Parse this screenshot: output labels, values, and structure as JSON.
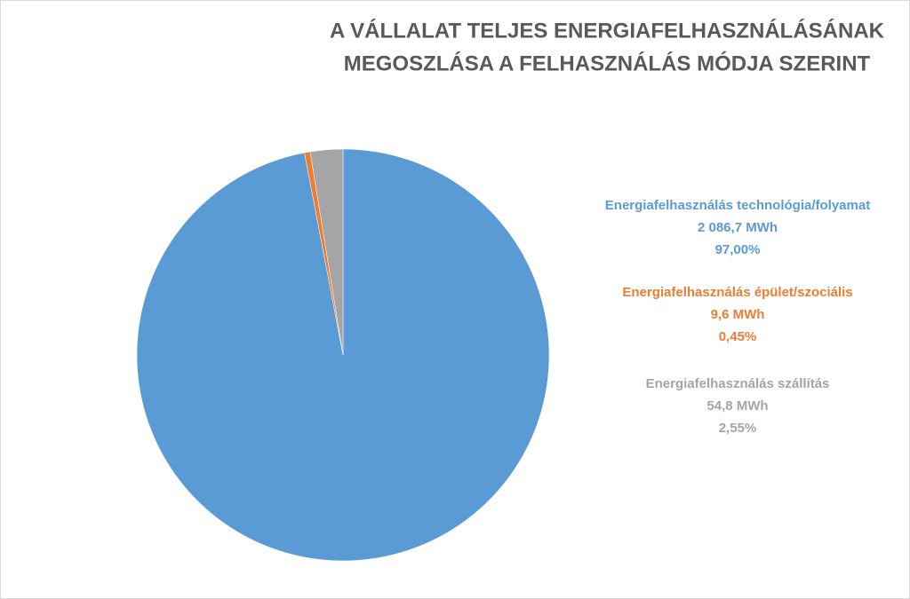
{
  "chart_data": {
    "type": "pie",
    "title": [
      "A VÁLLALAT TELJES ENERGIAFELHASZNÁLÁSÁNAK",
      "MEGOSZLÁSA A FELHASZNÁLÁS MÓDJA SZERINT"
    ],
    "categories": [
      "Energiafelhasználás technológia/folyamat",
      "Energiafelhasználás épület/szociális",
      "Energiafelhasználás szállítás"
    ],
    "values": [
      97,
      0.45,
      2.55
    ],
    "value_labels": [
      "97,00%",
      "0,45%",
      "2,55%"
    ],
    "amounts": [
      2086.7,
      9.6,
      54.8
    ],
    "amount_labels": [
      "2 086,7 MWh",
      "9,6 MWh",
      "54,8 MWh"
    ],
    "colors": [
      "#5b9bd5",
      "#ed7d31",
      "#a5a5a5"
    ]
  }
}
